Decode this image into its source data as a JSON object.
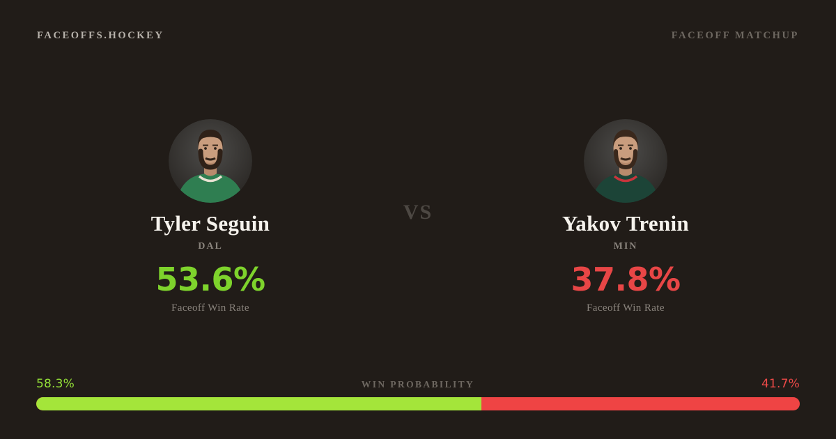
{
  "header": {
    "brand": "FACEOFFS.HOCKEY",
    "page_label": "FACEOFF MATCHUP"
  },
  "vs_label": "VS",
  "players": [
    {
      "name": "Tyler Seguin",
      "team": "DAL",
      "faceoff_win_rate": "53.6%",
      "rate_label": "Faceoff Win Rate",
      "accent_color": "#7ed32c",
      "jersey_color": "#2f7e51",
      "jersey_accent": "#e8e2d2",
      "hair_color": "#2f2118"
    },
    {
      "name": "Yakov Trenin",
      "team": "MIN",
      "faceoff_win_rate": "37.8%",
      "rate_label": "Faceoff Win Rate",
      "accent_color": "#e84646",
      "jersey_color": "#1c4437",
      "jersey_accent": "#c8343c",
      "hair_color": "#3a281c"
    }
  ],
  "win_probability": {
    "label": "WIN PROBABILITY",
    "left_value": "58.3%",
    "right_value": "41.7%",
    "left_text_color": "#94e038",
    "right_text_color": "#ef4a48",
    "left_bar_color": "#a4e53a",
    "right_bar_color": "#ef4444"
  },
  "colors": {
    "background": "#211c18",
    "name_text": "#f6f3ed",
    "muted_text": "#8a847d",
    "header_brand": "#b7b2ab",
    "header_muted": "#6e6861",
    "vs_text": "#4d4843"
  }
}
